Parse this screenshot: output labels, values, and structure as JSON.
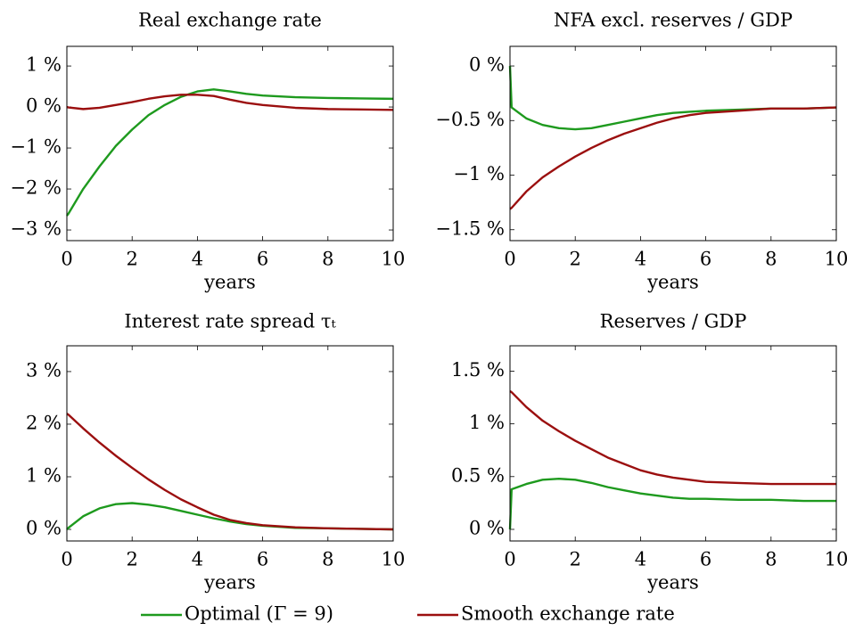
{
  "chart_data": [
    {
      "type": "line",
      "title": "Real exchange rate",
      "xlabel": "years",
      "x": [
        0,
        0.05,
        0.5,
        1,
        1.5,
        2,
        2.5,
        3,
        3.5,
        4,
        4.5,
        5,
        5.5,
        6,
        7,
        8,
        9,
        10
      ],
      "xlim": [
        0,
        10
      ],
      "xticks": [
        0,
        2,
        4,
        6,
        8,
        10
      ],
      "ylim": [
        -3.26,
        1.48
      ],
      "yticks": [
        {
          "value": -3,
          "label": "−3 %"
        },
        {
          "value": -2,
          "label": "−2 %"
        },
        {
          "value": -1,
          "label": "−1 %"
        },
        {
          "value": 0,
          "label": "0 %"
        },
        {
          "value": 1,
          "label": "1 %"
        }
      ],
      "series": [
        {
          "name": "Optimal (Γ = 9)",
          "color": "#1e9a1e",
          "values": [
            -2.65,
            -2.6,
            -2.0,
            -1.45,
            -0.95,
            -0.55,
            -0.2,
            0.05,
            0.25,
            0.38,
            0.43,
            0.38,
            0.32,
            0.28,
            0.24,
            0.22,
            0.21,
            0.2
          ]
        },
        {
          "name": "Smooth exchange rate",
          "color": "#9b0f0f",
          "values": [
            0,
            -0.01,
            -0.05,
            -0.02,
            0.05,
            0.12,
            0.2,
            0.26,
            0.3,
            0.3,
            0.27,
            0.18,
            0.1,
            0.05,
            -0.02,
            -0.05,
            -0.06,
            -0.07
          ]
        }
      ]
    },
    {
      "type": "line",
      "title": "NFA excl. reserves / GDP",
      "xlabel": "years",
      "x": [
        0,
        0.05,
        0.5,
        1,
        1.5,
        2,
        2.5,
        3,
        3.5,
        4,
        4.5,
        5,
        5.5,
        6,
        7,
        8,
        9,
        10
      ],
      "xlim": [
        0,
        10
      ],
      "xticks": [
        0,
        2,
        4,
        6,
        8,
        10
      ],
      "ylim": [
        -1.6,
        0.18
      ],
      "yticks": [
        {
          "value": -1.5,
          "label": "−1.5 %"
        },
        {
          "value": -1,
          "label": "−1 %"
        },
        {
          "value": -0.5,
          "label": "−0.5 %"
        },
        {
          "value": 0,
          "label": "0 %"
        }
      ],
      "series": [
        {
          "color": "#1e9a1e",
          "values": [
            0,
            -0.38,
            -0.48,
            -0.54,
            -0.57,
            -0.58,
            -0.57,
            -0.54,
            -0.51,
            -0.48,
            -0.45,
            -0.43,
            -0.42,
            -0.41,
            -0.4,
            -0.39,
            -0.39,
            -0.38
          ]
        },
        {
          "color": "#9b0f0f",
          "values": [
            -1.31,
            -1.3,
            -1.15,
            -1.02,
            -0.92,
            -0.83,
            -0.75,
            -0.68,
            -0.62,
            -0.57,
            -0.52,
            -0.48,
            -0.45,
            -0.43,
            -0.41,
            -0.39,
            -0.39,
            -0.38
          ]
        }
      ]
    },
    {
      "type": "line",
      "title": "Interest rate spread τₜ",
      "xlabel": "years",
      "x": [
        0,
        0.05,
        0.5,
        1,
        1.5,
        2,
        2.5,
        3,
        3.5,
        4,
        4.5,
        5,
        5.5,
        6,
        7,
        8,
        9,
        10
      ],
      "xlim": [
        0,
        10
      ],
      "xticks": [
        0,
        2,
        4,
        6,
        8,
        10
      ],
      "ylim": [
        -0.22,
        3.49
      ],
      "yticks": [
        {
          "value": 0,
          "label": "0 %"
        },
        {
          "value": 1,
          "label": "1 %"
        },
        {
          "value": 2,
          "label": "2 %"
        },
        {
          "value": 3,
          "label": "3 %"
        }
      ],
      "series": [
        {
          "color": "#1e9a1e",
          "values": [
            0,
            0.03,
            0.25,
            0.4,
            0.48,
            0.5,
            0.47,
            0.42,
            0.35,
            0.28,
            0.21,
            0.15,
            0.1,
            0.07,
            0.03,
            0.02,
            0.01,
            0
          ]
        },
        {
          "color": "#9b0f0f",
          "values": [
            2.2,
            2.18,
            1.92,
            1.65,
            1.4,
            1.17,
            0.95,
            0.75,
            0.57,
            0.42,
            0.28,
            0.18,
            0.12,
            0.08,
            0.04,
            0.02,
            0.01,
            0
          ]
        }
      ]
    },
    {
      "type": "line",
      "title": "Reserves / GDP",
      "xlabel": "years",
      "x": [
        0,
        0.05,
        0.5,
        1,
        1.5,
        2,
        2.5,
        3,
        3.5,
        4,
        4.5,
        5,
        5.5,
        6,
        7,
        8,
        9,
        10
      ],
      "xlim": [
        0,
        10
      ],
      "xticks": [
        0,
        2,
        4,
        6,
        8,
        10
      ],
      "ylim": [
        -0.11,
        1.74
      ],
      "yticks": [
        {
          "value": 0,
          "label": "0 %"
        },
        {
          "value": 0.5,
          "label": "0.5 %"
        },
        {
          "value": 1,
          "label": "1 %"
        },
        {
          "value": 1.5,
          "label": "1.5 %"
        }
      ],
      "series": [
        {
          "color": "#1e9a1e",
          "values": [
            0,
            0.38,
            0.43,
            0.47,
            0.48,
            0.47,
            0.44,
            0.4,
            0.37,
            0.34,
            0.32,
            0.3,
            0.29,
            0.29,
            0.28,
            0.28,
            0.27,
            0.27
          ]
        },
        {
          "color": "#9b0f0f",
          "values": [
            1.31,
            1.3,
            1.16,
            1.03,
            0.93,
            0.84,
            0.76,
            0.68,
            0.62,
            0.56,
            0.52,
            0.49,
            0.47,
            0.45,
            0.44,
            0.43,
            0.43,
            0.43
          ]
        }
      ]
    }
  ]
}
